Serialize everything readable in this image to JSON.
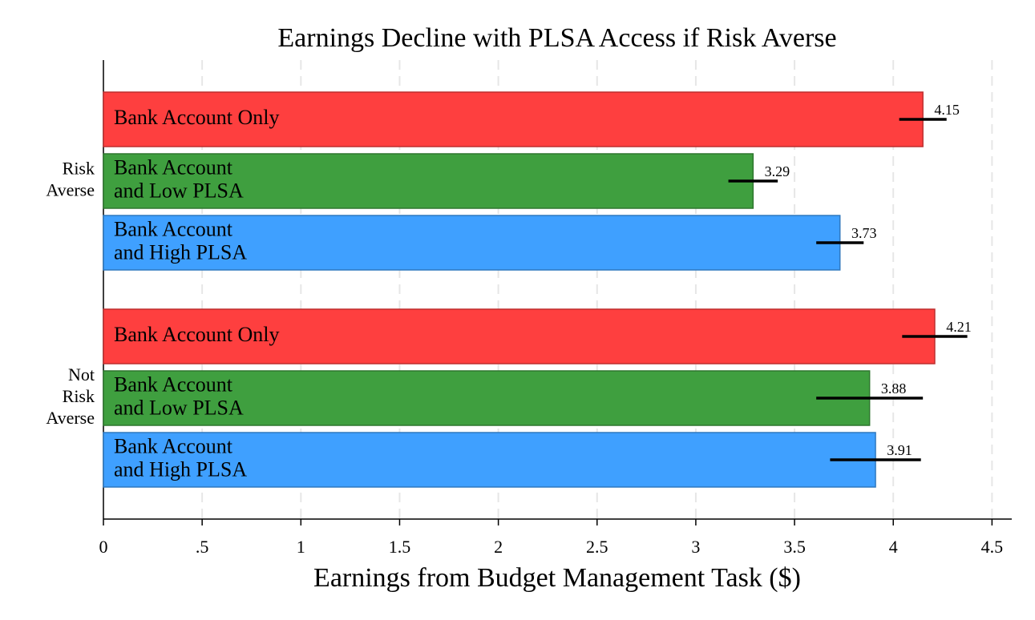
{
  "chart_data": {
    "type": "hbar",
    "title": "Earnings Decline with PLSA Access if Risk Averse",
    "x_label": "Earnings from Budget Management Task ($)",
    "categories": [
      "Risk\nAverse",
      "Not\nRisk\nAverse"
    ],
    "series": [
      {
        "name": "Bank Account Only",
        "color": "#fe3f3f",
        "values": [
          4.15,
          4.21
        ],
        "errors": [
          0.12,
          0.165
        ]
      },
      {
        "name": "Bank Account\nand Low PLSA",
        "color": "#3f9f3f",
        "values": [
          3.29,
          3.88
        ],
        "errors": [
          0.125,
          0.27
        ]
      },
      {
        "name": "Bank Account\nand High PLSA",
        "color": "#3fa0ff",
        "values": [
          3.73,
          3.91
        ],
        "errors": [
          0.12,
          0.23
        ]
      }
    ],
    "xlim": [
      0,
      4.6
    ],
    "xticks": [
      0,
      {
        "value": 0.5,
        "label": ".5"
      },
      1,
      1.5,
      2,
      2.5,
      3,
      3.5,
      4,
      4.5
    ],
    "grid": true
  }
}
